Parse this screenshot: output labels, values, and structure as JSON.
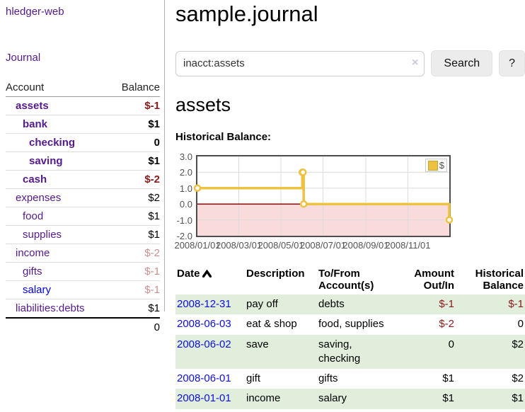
{
  "app": {
    "brand": "hledger-web",
    "nav_journal": "Journal"
  },
  "sidebar": {
    "header": {
      "account": "Account",
      "balance": "Balance"
    },
    "accounts": [
      {
        "name": "assets",
        "balance": "$-1"
      },
      {
        "name": "bank",
        "balance": "$1"
      },
      {
        "name": "checking",
        "balance": "0"
      },
      {
        "name": "saving",
        "balance": "$1"
      },
      {
        "name": "cash",
        "balance": "$-2"
      },
      {
        "name": "expenses",
        "balance": "$2"
      },
      {
        "name": "food",
        "balance": "$1"
      },
      {
        "name": "supplies",
        "balance": "$1"
      },
      {
        "name": "income",
        "balance": "$-2"
      },
      {
        "name": "gifts",
        "balance": "$-1"
      },
      {
        "name": "salary",
        "balance": "$-1"
      },
      {
        "name": "liabilities:debts",
        "balance": "$1"
      }
    ],
    "total": "0"
  },
  "header": {
    "title": "sample.journal"
  },
  "search": {
    "value": "inacct:assets",
    "clear": "×",
    "button": "Search",
    "help": "?"
  },
  "account_page": {
    "heading": "assets",
    "chart_label": "Historical Balance:"
  },
  "chart_data": {
    "type": "line",
    "step": true,
    "title": "Historical Balance:",
    "legend_position": "top-right",
    "grid": true,
    "ylim": [
      -2,
      3
    ],
    "xlim_days": [
      0,
      365
    ],
    "yticks": [
      3.0,
      2.0,
      1.0,
      0.0,
      -1.0,
      -2.0
    ],
    "xticks": [
      {
        "label": "2008/01/01",
        "day": 0
      },
      {
        "label": "2008/03/01",
        "day": 60
      },
      {
        "label": "2008/05/01",
        "day": 121
      },
      {
        "label": "2008/07/01",
        "day": 182
      },
      {
        "label": "2008/09/01",
        "day": 244
      },
      {
        "label": "2008/11/01",
        "day": 305
      }
    ],
    "series": [
      {
        "name": "$",
        "color": "#edc240",
        "points": [
          {
            "date": "2008-01-01",
            "day": 0,
            "value": 1
          },
          {
            "date": "2008-06-01",
            "day": 152,
            "value": 2
          },
          {
            "date": "2008-06-02",
            "day": 153,
            "value": 2
          },
          {
            "date": "2008-06-03",
            "day": 154,
            "value": 0
          },
          {
            "date": "2008-12-31",
            "day": 365,
            "value": -1
          }
        ]
      }
    ],
    "negative_region_color": "#fadbdb",
    "zero_line_color": "#a40000",
    "grid_color": "#dcdcdc"
  },
  "table": {
    "headers": {
      "date": "Date",
      "description": "Description",
      "accounts": "To/From\nAccount(s)",
      "amount": "Amount\nOut/In",
      "historical": "Historical\nBalance"
    },
    "rows": [
      {
        "date": "2008-12-31",
        "description": "pay off",
        "accounts": "debts",
        "amount": "$-1",
        "historical": "$-1"
      },
      {
        "date": "2008-06-03",
        "description": "eat & shop",
        "accounts": "food, supplies",
        "amount": "$-2",
        "historical": "0"
      },
      {
        "date": "2008-06-02",
        "description": "save",
        "accounts": "saving, checking",
        "amount": "0",
        "historical": "$2"
      },
      {
        "date": "2008-06-01",
        "description": "gift",
        "accounts": "gifts",
        "amount": "$1",
        "historical": "$2"
      },
      {
        "date": "2008-01-01",
        "description": "income",
        "accounts": "salary",
        "amount": "$1",
        "historical": "$1"
      }
    ]
  }
}
